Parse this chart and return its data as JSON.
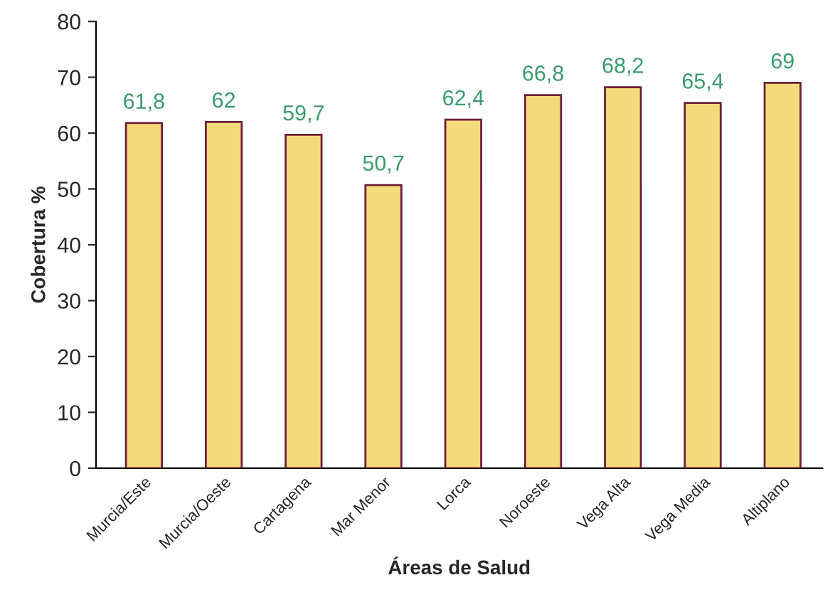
{
  "chart_data": {
    "type": "bar",
    "xlabel": "Áreas de Salud",
    "ylabel": "Cobertura %",
    "categories": [
      "Murcia/Este",
      "Murcia/Oeste",
      "Cartagena",
      "Mar Menor",
      "Lorca",
      "Noroeste",
      "Vega Alta",
      "Vega Media",
      "Altiplano"
    ],
    "values": [
      61.8,
      62,
      59.7,
      50.7,
      62.4,
      66.8,
      68.2,
      65.4,
      69
    ],
    "value_labels": [
      "61,8",
      "62",
      "59,7",
      "50,7",
      "62,4",
      "66,8",
      "68,2",
      "65,4",
      "69"
    ],
    "color": "#f5da7c",
    "ylim": [
      0,
      80
    ],
    "yticks": [
      0,
      10,
      20,
      30,
      40,
      50,
      60,
      70,
      80
    ],
    "grid": false,
    "legend": false
  }
}
